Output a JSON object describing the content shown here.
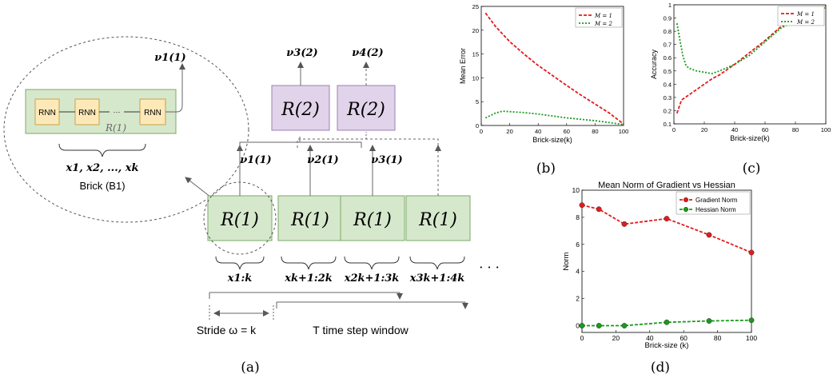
{
  "figure": {
    "caption_a": "(a)",
    "caption_b": "(b)",
    "caption_c": "(c)",
    "caption_d": "(d)"
  },
  "diagram": {
    "brick": {
      "rnn_labels": [
        "RNN",
        "RNN",
        "RNN"
      ],
      "dots": "···",
      "module": "R(1)",
      "output": "ν1(1)",
      "inputs": "x1, x2, ..., xk",
      "name": "Brick (B1)"
    },
    "level1": {
      "modules": [
        "R(1)",
        "R(1)",
        "R(1)",
        "R(1)"
      ],
      "outputs": [
        "ν1(1)",
        "ν2(1)",
        "ν3(1)"
      ],
      "inputs": [
        "x1:k",
        "xk+1:2k",
        "x2k+1:3k",
        "x3k+1:4k"
      ],
      "ellipsis": "· · ·"
    },
    "level2": {
      "modules": [
        "R(2)",
        "R(2)"
      ],
      "outputs": [
        "ν3(2)",
        "ν4(2)"
      ]
    },
    "stride_label": "Stride ω = k",
    "window_label": "T time step window"
  },
  "chart_data": [
    {
      "id": "b",
      "type": "line",
      "xlabel": "Brick-size(k)",
      "ylabel": "Mean Error",
      "xlim": [
        0,
        100
      ],
      "ylim": [
        0,
        25
      ],
      "xticks": [
        0,
        20,
        40,
        60,
        80,
        100
      ],
      "yticks": [
        0,
        5,
        10,
        15,
        20,
        25
      ],
      "legend_position": "top-right",
      "series": [
        {
          "name": "M = 1",
          "color": "#e41a1c",
          "style": "dashed",
          "x": [
            3,
            10,
            20,
            30,
            40,
            50,
            60,
            70,
            80,
            90,
            100
          ],
          "y": [
            23.6,
            20.8,
            17.6,
            15.0,
            12.6,
            10.5,
            8.4,
            6.4,
            4.5,
            2.6,
            0.3
          ]
        },
        {
          "name": "M = 2",
          "color": "#1a9a1a",
          "style": "dotted",
          "x": [
            3,
            10,
            15,
            20,
            30,
            40,
            50,
            60,
            70,
            80,
            90,
            100
          ],
          "y": [
            1.6,
            2.6,
            3.0,
            2.9,
            2.7,
            2.4,
            2.0,
            1.6,
            1.3,
            1.0,
            0.6,
            0.2
          ]
        }
      ]
    },
    {
      "id": "c",
      "type": "line",
      "xlabel": "Brick-size(k)",
      "ylabel": "Accuracy",
      "xlim": [
        0,
        100
      ],
      "ylim": [
        0.1,
        1.0
      ],
      "xticks": [
        0,
        20,
        40,
        60,
        80,
        100
      ],
      "yticks": [
        0.1,
        0.2,
        0.3,
        0.4,
        0.5,
        0.6,
        0.7,
        0.8,
        0.9,
        1.0
      ],
      "legend_position": "top-right",
      "series": [
        {
          "name": "M = 1",
          "color": "#e41a1c",
          "style": "dashed",
          "x": [
            2,
            5,
            10,
            15,
            20,
            25,
            30,
            40,
            50,
            60,
            70,
            80,
            90,
            93,
            97,
            100
          ],
          "y": [
            0.18,
            0.28,
            0.32,
            0.36,
            0.4,
            0.44,
            0.47,
            0.55,
            0.64,
            0.73,
            0.83,
            0.89,
            0.93,
            0.97,
            0.98,
            0.99
          ]
        },
        {
          "name": "M = 2",
          "color": "#1a9a1a",
          "style": "dotted",
          "x": [
            2,
            4,
            6,
            8,
            10,
            15,
            20,
            25,
            30,
            40,
            50,
            60,
            70,
            80,
            90,
            100
          ],
          "y": [
            0.86,
            0.73,
            0.61,
            0.54,
            0.52,
            0.5,
            0.49,
            0.48,
            0.5,
            0.55,
            0.62,
            0.72,
            0.82,
            0.88,
            0.93,
            0.98
          ]
        }
      ]
    },
    {
      "id": "d",
      "type": "line",
      "title": "Mean Norm of Gradient vs Hessian",
      "xlabel": "Brick-size (k)",
      "ylabel": "Norm",
      "xlim": [
        0,
        100
      ],
      "ylim": [
        -0.5,
        10
      ],
      "xticks": [
        0,
        20,
        40,
        60,
        80,
        100
      ],
      "yticks": [
        0,
        2,
        4,
        6,
        8,
        10
      ],
      "legend_position": "top-right",
      "series": [
        {
          "name": "Gradient Norm",
          "color": "#e41a1c",
          "style": "dashed",
          "marker": "circle",
          "x": [
            0,
            10,
            25,
            50,
            75,
            100
          ],
          "y": [
            8.9,
            8.6,
            7.5,
            7.9,
            6.7,
            5.4
          ]
        },
        {
          "name": "Hessian Norm",
          "color": "#1a9a1a",
          "style": "dashed",
          "marker": "circle",
          "x": [
            0,
            10,
            25,
            50,
            75,
            100
          ],
          "y": [
            0.0,
            0.0,
            0.0,
            0.25,
            0.35,
            0.4
          ]
        }
      ]
    }
  ]
}
